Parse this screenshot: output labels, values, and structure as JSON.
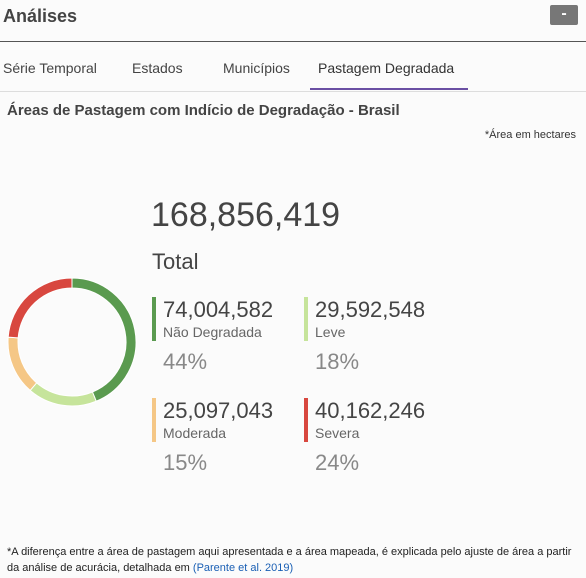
{
  "header": {
    "title": "Análises",
    "button": "-"
  },
  "tabs": {
    "items": [
      "Série Temporal",
      "Estados",
      "Municípios",
      "Pastagem Degradada"
    ],
    "active": 3
  },
  "panel": {
    "title": "Áreas de Pastagem com Indício de Degradação - Brasil",
    "unit_note": "*Área em hectares",
    "total": "168,856,419",
    "total_label": "Total"
  },
  "chart_data": {
    "type": "pie",
    "donut": true,
    "categories": [
      "Não Degradada",
      "Leve",
      "Moderada",
      "Severa"
    ],
    "values": [
      74004582,
      29592548,
      25097043,
      40162246
    ],
    "value_labels": [
      "74,004,582",
      "29,592,548",
      "25,097,043",
      "40,162,246"
    ],
    "percent_labels": [
      "44%",
      "18%",
      "15%",
      "24%"
    ],
    "colors": [
      "#5a9a4f",
      "#c6e49b",
      "#f5c786",
      "#d8473f"
    ]
  },
  "footnote": {
    "text": "*A diferença entre a área de pastagem aqui apresentada e a área mapeada, é explicada pelo ajuste de área a partir da análise de acurácia, detalhada em ",
    "link": "(Parente et al. 2019)"
  }
}
